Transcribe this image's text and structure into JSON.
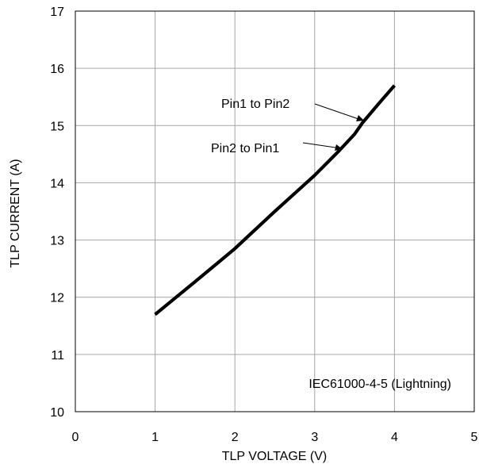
{
  "chart_data": {
    "type": "line",
    "title": "",
    "xlabel": "TLP VOLTAGE (V)",
    "ylabel": "TLP CURRENT (A)",
    "xlim": [
      0,
      5
    ],
    "ylim": [
      10,
      17
    ],
    "xticks": [
      "0",
      "1",
      "2",
      "3",
      "4",
      "5"
    ],
    "yticks": [
      "10",
      "11",
      "12",
      "13",
      "14",
      "15",
      "16",
      "17"
    ],
    "grid": true,
    "series": [
      {
        "name": "Pin1 to Pin2",
        "x": [
          1.0,
          1.5,
          2.0,
          2.5,
          3.0,
          3.3,
          3.5,
          3.6,
          3.8,
          4.0
        ],
        "y": [
          11.7,
          12.27,
          12.85,
          13.5,
          14.13,
          14.55,
          14.85,
          15.05,
          15.38,
          15.7
        ]
      },
      {
        "name": "Pin2 to Pin1",
        "x": [
          1.0,
          1.5,
          2.0,
          2.5,
          3.0,
          3.3,
          3.5,
          3.6,
          3.8,
          4.0
        ],
        "y": [
          11.7,
          12.27,
          12.85,
          13.5,
          14.13,
          14.55,
          14.85,
          15.05,
          15.38,
          15.7
        ]
      }
    ],
    "annotations": [
      {
        "text": "Pin1 to Pin2",
        "target_series": "Pin1 to Pin2"
      },
      {
        "text": "Pin2 to Pin1",
        "target_series": "Pin2 to Pin1"
      },
      {
        "text": "IEC61000-4-5 (Lightning)"
      }
    ],
    "line_color": "#000000",
    "grid_color": "#a6a6a6"
  }
}
